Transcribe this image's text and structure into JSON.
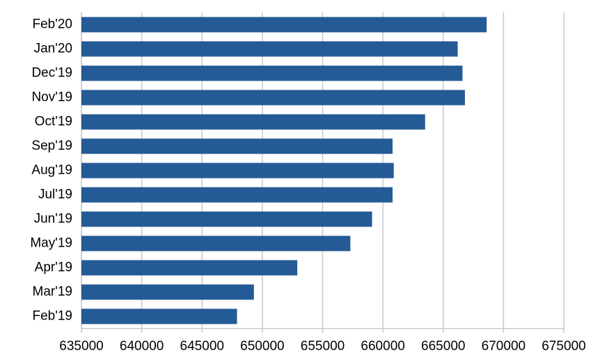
{
  "chart_data": {
    "type": "barh",
    "categories": [
      "Feb'19",
      "Mar'19",
      "Apr'19",
      "May'19",
      "Jun'19",
      "Jul'19",
      "Aug'19",
      "Sep'19",
      "Oct'19",
      "Nov'19",
      "Dec'19",
      "Jan'20",
      "Feb'20"
    ],
    "values": [
      647900,
      649300,
      652900,
      657300,
      659100,
      660800,
      660900,
      660800,
      663500,
      666800,
      666600,
      666200,
      668600
    ],
    "color": "#245a96",
    "xlim": [
      635000,
      675000
    ],
    "xticks": [
      635000,
      640000,
      645000,
      650000,
      655000,
      660000,
      665000,
      670000,
      675000
    ],
    "grid": true
  }
}
